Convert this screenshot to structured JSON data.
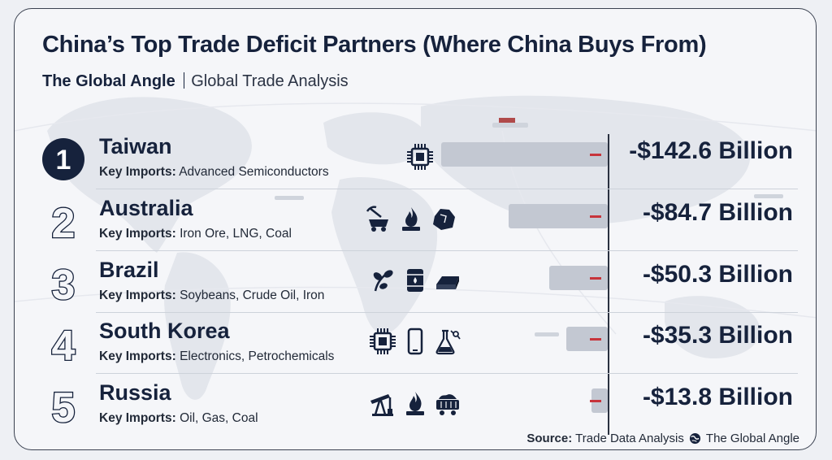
{
  "title": "China’s Top Trade Deficit Partners (Where China Buys From)",
  "subtitle": {
    "brand": "The Global Angle",
    "text": "Global Trade Analysis"
  },
  "key_imports_label": "Key Imports:",
  "source": {
    "label": "Source:",
    "text": "Trade Data Analysis",
    "brand": "The Global Angle"
  },
  "chart_data": {
    "type": "bar",
    "orientation": "horizontal",
    "title": "China’s Top Trade Deficit Partners (Where China Buys From)",
    "categories": [
      "Taiwan",
      "Australia",
      "Brazil",
      "South Korea",
      "Russia"
    ],
    "values": [
      -142.6,
      -84.7,
      -50.3,
      -35.3,
      -13.8
    ],
    "units": "Billion USD",
    "value_labels": [
      "-$142.6 Billion",
      "-$84.7 Billion",
      "-$50.3 Billion",
      "-$35.3 Billion",
      "-$13.8 Billion"
    ],
    "grid": false,
    "legend": "none"
  },
  "rows": [
    {
      "rank": "1",
      "country": "Taiwan",
      "imports": "Advanced Semiconductors",
      "value_label": "-$142.6 Billion",
      "icons": [
        "microchip-icon"
      ],
      "highlight": true
    },
    {
      "rank": "2",
      "country": "Australia",
      "imports": "Iron Ore, LNG, Coal",
      "value_label": "-$84.7 Billion",
      "icons": [
        "mining-cart-icon",
        "gas-flame-icon",
        "coal-lump-icon"
      ],
      "highlight": false
    },
    {
      "rank": "3",
      "country": "Brazil",
      "imports": "Soybeans, Crude Oil, Iron",
      "value_label": "-$50.3 Billion",
      "icons": [
        "soybean-icon",
        "oil-barrel-icon",
        "iron-ingot-icon"
      ],
      "highlight": false
    },
    {
      "rank": "4",
      "country": "South Korea",
      "imports": "Electronics, Petrochemicals",
      "value_label": "-$35.3 Billion",
      "icons": [
        "microchip-icon",
        "smartphone-icon",
        "flask-icon"
      ],
      "highlight": false
    },
    {
      "rank": "5",
      "country": "Russia",
      "imports": "Oil, Gas, Coal",
      "value_label": "-$13.8 Billion",
      "icons": [
        "oil-pump-icon",
        "gas-flame-icon",
        "coal-cart-icon"
      ],
      "highlight": false
    }
  ],
  "colors": {
    "navy": "#16223c",
    "bar": "#c3c8d2",
    "bar_marker": "#c7343b",
    "axis": "#2a3140"
  }
}
